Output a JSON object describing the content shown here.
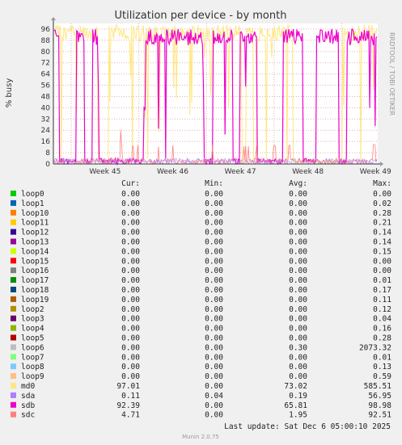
{
  "chart_data": {
    "type": "line",
    "title": "Utilization per device - by month",
    "ylabel": "% busy",
    "ylim": [
      0,
      100
    ],
    "yticks": [
      0,
      8,
      16,
      24,
      32,
      40,
      48,
      56,
      64,
      72,
      80,
      88,
      96
    ],
    "grid": true,
    "xticks": [
      "Week 45",
      "Week 46",
      "Week 47",
      "Week 48",
      "Week 49"
    ],
    "side_label": "RRDTOOL / TOBI OETIKER",
    "legend_headers": [
      "Cur:",
      "Min:",
      "Avg:",
      "Max:"
    ],
    "series": [
      {
        "name": "loop0",
        "color": "#00cc00",
        "cur": "0.00",
        "min": "0.00",
        "avg": "0.00",
        "max": "0.00"
      },
      {
        "name": "loop1",
        "color": "#0066b3",
        "cur": "0.00",
        "min": "0.00",
        "avg": "0.00",
        "max": "0.02"
      },
      {
        "name": "loop10",
        "color": "#ff8000",
        "cur": "0.00",
        "min": "0.00",
        "avg": "0.00",
        "max": "0.28"
      },
      {
        "name": "loop11",
        "color": "#ffcc00",
        "cur": "0.00",
        "min": "0.00",
        "avg": "0.00",
        "max": "0.21"
      },
      {
        "name": "loop12",
        "color": "#330099",
        "cur": "0.00",
        "min": "0.00",
        "avg": "0.00",
        "max": "0.14"
      },
      {
        "name": "loop13",
        "color": "#990099",
        "cur": "0.00",
        "min": "0.00",
        "avg": "0.00",
        "max": "0.14"
      },
      {
        "name": "loop14",
        "color": "#ccff00",
        "cur": "0.00",
        "min": "0.00",
        "avg": "0.00",
        "max": "0.15"
      },
      {
        "name": "loop15",
        "color": "#ff0000",
        "cur": "0.00",
        "min": "0.00",
        "avg": "0.00",
        "max": "0.00"
      },
      {
        "name": "loop16",
        "color": "#808080",
        "cur": "0.00",
        "min": "0.00",
        "avg": "0.00",
        "max": "0.00"
      },
      {
        "name": "loop17",
        "color": "#008f00",
        "cur": "0.00",
        "min": "0.00",
        "avg": "0.00",
        "max": "0.01"
      },
      {
        "name": "loop18",
        "color": "#00487d",
        "cur": "0.00",
        "min": "0.00",
        "avg": "0.00",
        "max": "0.17"
      },
      {
        "name": "loop19",
        "color": "#b35a00",
        "cur": "0.00",
        "min": "0.00",
        "avg": "0.00",
        "max": "0.11"
      },
      {
        "name": "loop2",
        "color": "#b38f00",
        "cur": "0.00",
        "min": "0.00",
        "avg": "0.00",
        "max": "0.12"
      },
      {
        "name": "loop3",
        "color": "#6b006b",
        "cur": "0.00",
        "min": "0.00",
        "avg": "0.00",
        "max": "0.04"
      },
      {
        "name": "loop4",
        "color": "#8fb300",
        "cur": "0.00",
        "min": "0.00",
        "avg": "0.00",
        "max": "0.16"
      },
      {
        "name": "loop5",
        "color": "#b30000",
        "cur": "0.00",
        "min": "0.00",
        "avg": "0.00",
        "max": "0.28"
      },
      {
        "name": "loop6",
        "color": "#bebebe",
        "cur": "0.00",
        "min": "0.00",
        "avg": "0.30",
        "max": "2073.32"
      },
      {
        "name": "loop7",
        "color": "#80ff80",
        "cur": "0.00",
        "min": "0.00",
        "avg": "0.00",
        "max": "0.01"
      },
      {
        "name": "loop8",
        "color": "#80c9ff",
        "cur": "0.00",
        "min": "0.00",
        "avg": "0.00",
        "max": "0.13"
      },
      {
        "name": "loop9",
        "color": "#ffc080",
        "cur": "0.00",
        "min": "0.00",
        "avg": "0.00",
        "max": "0.59"
      },
      {
        "name": "md0",
        "color": "#ffe680",
        "cur": "97.01",
        "min": "0.00",
        "avg": "73.02",
        "max": "585.51"
      },
      {
        "name": "sda",
        "color": "#aa80ff",
        "cur": "0.11",
        "min": "0.04",
        "avg": "0.19",
        "max": "56.95"
      },
      {
        "name": "sdb",
        "color": "#ee00cc",
        "cur": "92.39",
        "min": "0.00",
        "avg": "65.81",
        "max": "98.98"
      },
      {
        "name": "sdc",
        "color": "#ff8080",
        "cur": "4.71",
        "min": "0.00",
        "avg": "1.95",
        "max": "92.51"
      }
    ],
    "last_update": "Last update: Sat Dec  6 05:00:10 2025",
    "footer": "Munin 2.0.75"
  }
}
